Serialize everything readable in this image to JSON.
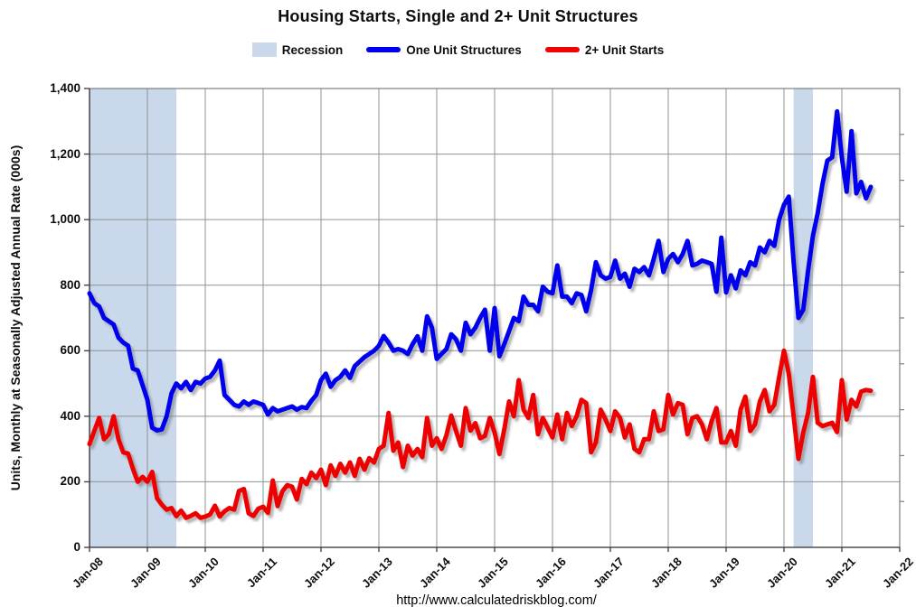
{
  "title": "Housing Starts, Single and 2+ Unit Structures",
  "legend": {
    "recession": "Recession",
    "one_unit": "One Unit Structures",
    "two_plus": "2+ Unit Starts"
  },
  "y_axis": {
    "title": "Units, Monthly at Seasonally Adjusted Annual Rate (000s)",
    "tick_labels": [
      "0",
      "200",
      "400",
      "600",
      "800",
      "1,000",
      "1,200",
      "1,400"
    ]
  },
  "x_axis": {
    "tick_labels": [
      "Jan-08",
      "Jan-09",
      "Jan-10",
      "Jan-11",
      "Jan-12",
      "Jan-13",
      "Jan-14",
      "Jan-15",
      "Jan-16",
      "Jan-17",
      "Jan-18",
      "Jan-19",
      "Jan-20",
      "Jan-21",
      "Jan-22"
    ]
  },
  "footer": {
    "url": "http://www.calculatedriskblog.com/"
  },
  "colors": {
    "one_unit": "#0000ee",
    "two_plus": "#ee0404",
    "recession_band": "#c9d8ea",
    "grid": "#909090",
    "border": "#7f7f7f",
    "axis": "#3a3a3a",
    "text": "#0d0d0d"
  },
  "chart_data": {
    "type": "line",
    "title": "Housing Starts, Single and 2+ Unit Structures",
    "ylabel": "Units, Monthly at Seasonally Adjusted Annual Rate (000s)",
    "frequency": "monthly",
    "x_start": "2008-01",
    "x_end": "2021-07",
    "ylim": [
      0,
      1400
    ],
    "y_tick_values": [
      0,
      200,
      400,
      600,
      800,
      1000,
      1200,
      1400
    ],
    "x_tick_labels": [
      "Jan-08",
      "Jan-09",
      "Jan-10",
      "Jan-11",
      "Jan-12",
      "Jan-13",
      "Jan-14",
      "Jan-15",
      "Jan-16",
      "Jan-17",
      "Jan-18",
      "Jan-19",
      "Jan-20",
      "Jan-21",
      "Jan-22"
    ],
    "grid": true,
    "legend_position": "top",
    "recession_bands": [
      {
        "from": "2008-01",
        "to": "2009-07"
      },
      {
        "from": "2020-03",
        "to": "2020-07"
      }
    ],
    "series": [
      {
        "name": "One Unit Structures",
        "color": "#0000ee",
        "values": [
          775,
          745,
          735,
          700,
          690,
          680,
          640,
          625,
          615,
          545,
          540,
          495,
          450,
          365,
          357,
          360,
          400,
          470,
          500,
          485,
          505,
          480,
          505,
          500,
          515,
          520,
          540,
          570,
          465,
          450,
          435,
          430,
          445,
          435,
          445,
          440,
          435,
          405,
          425,
          415,
          420,
          425,
          430,
          420,
          428,
          425,
          447,
          465,
          510,
          530,
          490,
          510,
          520,
          540,
          517,
          553,
          567,
          580,
          590,
          600,
          615,
          645,
          625,
          600,
          605,
          600,
          590,
          620,
          644,
          600,
          705,
          670,
          575,
          590,
          605,
          650,
          635,
          600,
          685,
          650,
          670,
          700,
          725,
          600,
          730,
          583,
          620,
          660,
          700,
          690,
          765,
          740,
          740,
          720,
          795,
          780,
          775,
          860,
          765,
          765,
          745,
          775,
          770,
          720,
          785,
          870,
          830,
          820,
          825,
          875,
          820,
          835,
          795,
          850,
          840,
          855,
          830,
          880,
          935,
          840,
          880,
          895,
          870,
          895,
          935,
          860,
          865,
          875,
          870,
          865,
          780,
          945,
          778,
          830,
          790,
          845,
          830,
          870,
          860,
          915,
          900,
          935,
          920,
          1000,
          1045,
          1070,
          870,
          700,
          725,
          845,
          950,
          1020,
          1110,
          1180,
          1190,
          1330,
          1190,
          1085,
          1270,
          1080,
          1115,
          1065,
          1100
        ]
      },
      {
        "name": "2+ Unit Starts",
        "color": "#ee0404",
        "values": [
          315,
          355,
          395,
          330,
          345,
          400,
          330,
          290,
          286,
          240,
          200,
          215,
          200,
          230,
          150,
          130,
          115,
          120,
          95,
          112,
          90,
          96,
          104,
          90,
          94,
          100,
          127,
          94,
          110,
          120,
          115,
          172,
          178,
          104,
          96,
          118,
          124,
          105,
          204,
          126,
          171,
          190,
          185,
          146,
          209,
          193,
          228,
          211,
          237,
          190,
          250,
          218,
          255,
          228,
          259,
          218,
          270,
          237,
          272,
          259,
          300,
          310,
          410,
          295,
          320,
          245,
          310,
          280,
          300,
          275,
          395,
          310,
          333,
          300,
          342,
          402,
          355,
          310,
          425,
          356,
          379,
          333,
          340,
          395,
          350,
          285,
          360,
          445,
          400,
          510,
          420,
          395,
          465,
          345,
          395,
          365,
          335,
          405,
          330,
          410,
          370,
          400,
          450,
          440,
          290,
          320,
          420,
          390,
          355,
          415,
          395,
          335,
          375,
          300,
          290,
          330,
          330,
          415,
          355,
          360,
          465,
          405,
          440,
          435,
          345,
          395,
          400,
          375,
          330,
          385,
          425,
          320,
          320,
          355,
          310,
          420,
          460,
          355,
          375,
          445,
          480,
          415,
          435,
          520,
          600,
          530,
          400,
          270,
          350,
          410,
          520,
          380,
          370,
          375,
          380,
          352,
          510,
          390,
          450,
          430,
          475,
          480,
          478
        ]
      }
    ]
  }
}
